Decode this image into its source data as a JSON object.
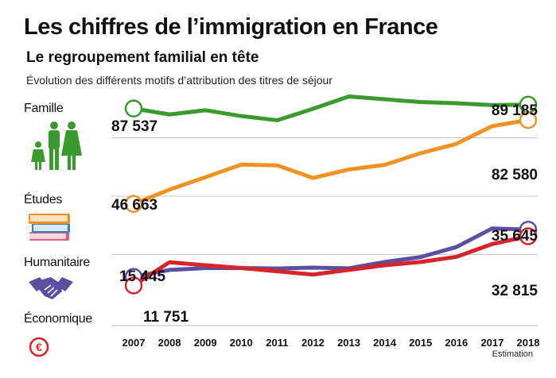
{
  "header": {
    "title": "Les chiffres de l’immigration en France",
    "subtitle": "Le regroupement familial en tête",
    "description": "Évolution des différents motifs d’attribution des titres de séjour"
  },
  "categories": {
    "famille": "Famille",
    "etudes": "Études",
    "humanitaire": "Humanitaire",
    "economique": "Économique"
  },
  "chart_data": {
    "type": "line",
    "title": "Évolution des différents motifs d’attribution des titres de séjour",
    "x": [
      "2007",
      "2008",
      "2009",
      "2010",
      "2011",
      "2012",
      "2013",
      "2014",
      "2015",
      "2016",
      "2017",
      "2018"
    ],
    "x_note": "Estimation",
    "ylim": [
      0,
      100000
    ],
    "grid": true,
    "series": [
      {
        "name": "Famille",
        "color": "#3a9a2e",
        "values": [
          87537,
          85000,
          86800,
          84300,
          82500,
          87400,
          92700,
          91500,
          90300,
          89800,
          89000,
          89185
        ],
        "start_label": "87 537",
        "end_label": "89 185"
      },
      {
        "name": "Études",
        "color": "#ef9221",
        "values": [
          46663,
          52800,
          58100,
          63500,
          63200,
          57800,
          61400,
          63400,
          68400,
          72400,
          80000,
          82580
        ],
        "start_label": "46 663",
        "end_label": "82 580"
      },
      {
        "name": "Humanitaire",
        "color": "#5a4fa0",
        "values": [
          15445,
          18400,
          19200,
          19200,
          19000,
          19400,
          19100,
          21800,
          23900,
          28200,
          36200,
          35645
        ],
        "start_label": "15 445",
        "end_label": "35 645"
      },
      {
        "name": "Économique",
        "color": "#d8232a",
        "values": [
          11751,
          21700,
          20400,
          19200,
          17800,
          16400,
          18400,
          20400,
          21800,
          24000,
          29500,
          32815
        ],
        "start_label": "11 751",
        "end_label": "32 815"
      }
    ]
  }
}
